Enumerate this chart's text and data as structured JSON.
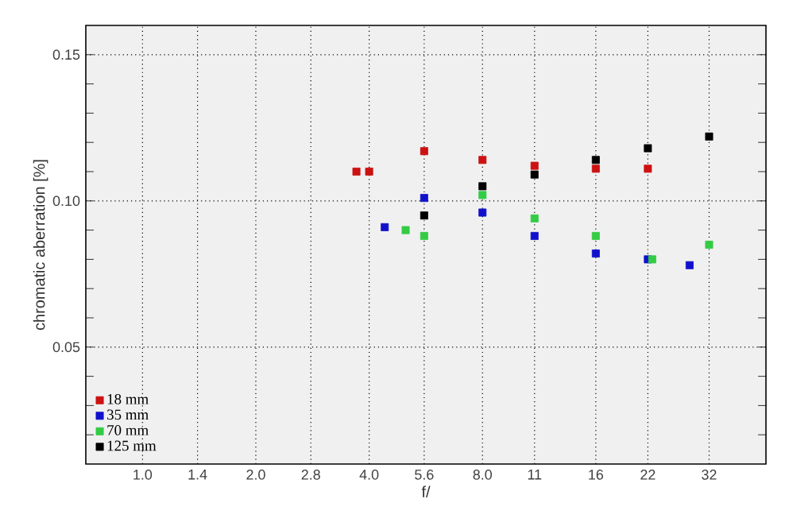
{
  "chart_data": {
    "type": "scatter",
    "xlabel": "f/",
    "ylabel": "chromatic aberration [%]",
    "log": "x",
    "xlim": [
      0.707,
      45.3
    ],
    "ylim": [
      0.01,
      0.16
    ],
    "xticks": [
      {
        "value": 1.0,
        "label": "1.0"
      },
      1.4,
      {
        "value": 2.0,
        "label": "2.0"
      },
      2.8,
      {
        "value": 4.0,
        "label": "4.0"
      },
      5.6,
      {
        "value": 8.0,
        "label": "8.0"
      },
      11,
      16,
      22,
      32
    ],
    "yticks": [
      {
        "value": 0.02,
        "label": null
      },
      {
        "value": 0.03,
        "label": null
      },
      {
        "value": 0.04,
        "label": null
      },
      0.05,
      {
        "value": 0.06,
        "label": null
      },
      {
        "value": 0.07,
        "label": null
      },
      {
        "value": 0.08,
        "label": null
      },
      {
        "value": 0.09,
        "label": null
      },
      {
        "value": 0.1,
        "label": "0.10"
      },
      {
        "value": 0.11,
        "label": null
      },
      {
        "value": 0.12,
        "label": null
      },
      {
        "value": 0.13,
        "label": null
      },
      {
        "value": 0.14,
        "label": null
      },
      0.15
    ],
    "grid": true,
    "legend": "bottom left",
    "marker": "square",
    "series": [
      {
        "name": "18 mm",
        "color": "#cc1111",
        "x": [
          3.7,
          4.0,
          5.6,
          8.0,
          11,
          16,
          22
        ],
        "values": [
          0.11,
          0.11,
          0.117,
          0.114,
          0.112,
          0.111,
          0.111
        ]
      },
      {
        "name": "35 mm",
        "color": "#1111cc",
        "x": [
          4.4,
          5.6,
          8.0,
          11,
          16,
          22,
          28.4
        ],
        "values": [
          0.091,
          0.101,
          0.096,
          0.088,
          0.082,
          0.08,
          0.078
        ]
      },
      {
        "name": "70 mm",
        "color": "#33cc44",
        "x": [
          5.0,
          5.6,
          8.0,
          11,
          16,
          22.6,
          32
        ],
        "values": [
          0.09,
          0.088,
          0.102,
          0.094,
          0.088,
          0.08,
          0.085
        ]
      },
      {
        "name": "125 mm",
        "color": "#000000",
        "x": [
          5.6,
          8.0,
          11,
          16,
          22,
          32
        ],
        "values": [
          0.095,
          0.105,
          0.109,
          0.114,
          0.118,
          0.122
        ]
      }
    ]
  }
}
